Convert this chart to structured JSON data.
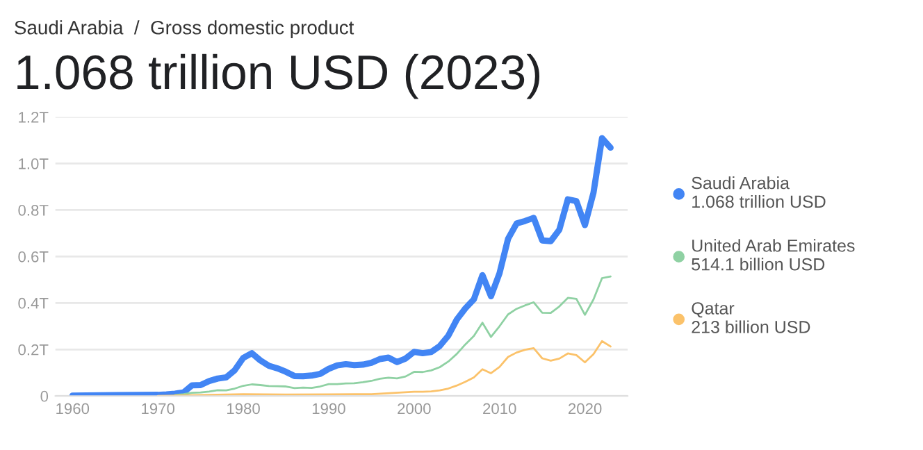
{
  "chart_data": {
    "type": "line",
    "subtitle": "Saudi Arabia  /  Gross domestic product",
    "title": "1.068 trillion USD (2023)",
    "xlim": [
      1958,
      2025
    ],
    "xticks": [
      1960,
      1970,
      1980,
      1990,
      2000,
      2010,
      2020
    ],
    "ylim": [
      0,
      1.2
    ],
    "yticks": [
      0,
      {
        "value": 0.2,
        "label": "0.2T"
      },
      {
        "value": 0.4,
        "label": "0.4T"
      },
      {
        "value": 0.6,
        "label": "0.6T"
      },
      {
        "value": 0.8,
        "label": "0.8T"
      },
      {
        "value": 1.0,
        "label": "1.0T"
      },
      {
        "value": 1.2,
        "label": "1.2T"
      }
    ],
    "grid": "y",
    "legend": "right",
    "annotations": [
      "1.068 trillion USD",
      "514.1 billion USD",
      "213 billion USD"
    ],
    "series": [
      {
        "name": "Saudi Arabia",
        "color": "#4285f4",
        "x": [
          1960,
          1965,
          1970,
          1971,
          1972,
          1973,
          1974,
          1975,
          1976,
          1977,
          1978,
          1979,
          1980,
          1981,
          1982,
          1983,
          1984,
          1985,
          1986,
          1987,
          1988,
          1989,
          1990,
          1991,
          1992,
          1993,
          1994,
          1995,
          1996,
          1997,
          1998,
          1999,
          2000,
          2001,
          2002,
          2003,
          2004,
          2005,
          2006,
          2007,
          2008,
          2009,
          2010,
          2011,
          2012,
          2013,
          2014,
          2015,
          2016,
          2017,
          2018,
          2019,
          2020,
          2021,
          2022,
          2023
        ],
        "values": [
          0.002,
          0.004,
          0.005,
          0.007,
          0.01,
          0.015,
          0.046,
          0.047,
          0.064,
          0.075,
          0.08,
          0.111,
          0.164,
          0.184,
          0.153,
          0.13,
          0.119,
          0.104,
          0.086,
          0.085,
          0.088,
          0.095,
          0.117,
          0.132,
          0.137,
          0.133,
          0.135,
          0.143,
          0.159,
          0.165,
          0.146,
          0.161,
          0.19,
          0.184,
          0.189,
          0.215,
          0.259,
          0.329,
          0.377,
          0.416,
          0.52,
          0.429,
          0.528,
          0.676,
          0.742,
          0.753,
          0.766,
          0.669,
          0.666,
          0.715,
          0.846,
          0.838,
          0.735,
          0.874,
          1.109,
          1.068
        ]
      },
      {
        "name": "United Arab Emirates",
        "color": "#8fd1a3",
        "x": [
          1972,
          1973,
          1974,
          1975,
          1976,
          1977,
          1978,
          1979,
          1980,
          1981,
          1982,
          1983,
          1984,
          1985,
          1986,
          1987,
          1988,
          1989,
          1990,
          1991,
          1992,
          1993,
          1994,
          1995,
          1996,
          1997,
          1998,
          1999,
          2000,
          2001,
          2002,
          2003,
          2004,
          2005,
          2006,
          2007,
          2008,
          2009,
          2010,
          2011,
          2012,
          2013,
          2014,
          2015,
          2016,
          2017,
          2018,
          2019,
          2020,
          2021,
          2022,
          2023
        ],
        "values": [
          0.004,
          0.008,
          0.014,
          0.015,
          0.019,
          0.025,
          0.024,
          0.032,
          0.044,
          0.05,
          0.047,
          0.043,
          0.042,
          0.041,
          0.034,
          0.036,
          0.035,
          0.041,
          0.051,
          0.051,
          0.054,
          0.055,
          0.059,
          0.065,
          0.074,
          0.079,
          0.076,
          0.084,
          0.104,
          0.103,
          0.11,
          0.124,
          0.148,
          0.181,
          0.222,
          0.258,
          0.315,
          0.254,
          0.3,
          0.351,
          0.375,
          0.39,
          0.403,
          0.358,
          0.357,
          0.385,
          0.422,
          0.418,
          0.349,
          0.415,
          0.507,
          0.514
        ]
      },
      {
        "name": "Qatar",
        "color": "#fbc26a",
        "x": [
          1970,
          1975,
          1980,
          1985,
          1990,
          1995,
          2000,
          2001,
          2002,
          2003,
          2004,
          2005,
          2006,
          2007,
          2008,
          2009,
          2010,
          2011,
          2012,
          2013,
          2014,
          2015,
          2016,
          2017,
          2018,
          2019,
          2020,
          2021,
          2022,
          2023
        ],
        "values": [
          0,
          0.004,
          0.008,
          0.006,
          0.007,
          0.008,
          0.018,
          0.018,
          0.02,
          0.024,
          0.032,
          0.045,
          0.061,
          0.08,
          0.115,
          0.098,
          0.125,
          0.168,
          0.187,
          0.199,
          0.206,
          0.162,
          0.152,
          0.161,
          0.183,
          0.176,
          0.145,
          0.18,
          0.236,
          0.213
        ]
      }
    ]
  }
}
